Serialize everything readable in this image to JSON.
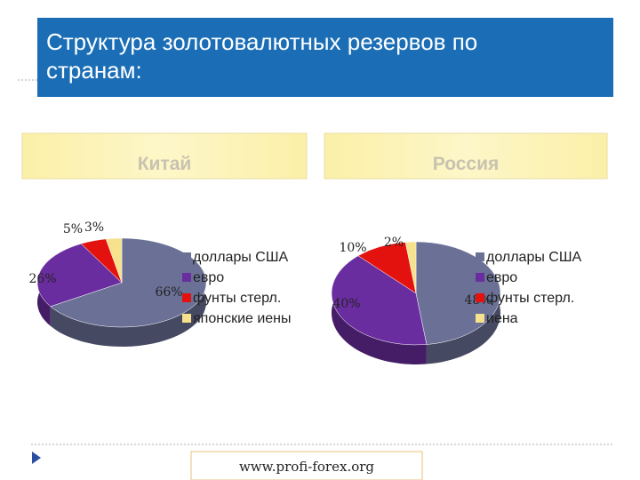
{
  "title": "Структура золотовалютных резервов по странам:",
  "footer": "www.profi-forex.org",
  "chart_data": [
    {
      "type": "pie",
      "title": "Китай",
      "categories": [
        "доллары США",
        "евро",
        "фунты стерл.",
        "японские иены"
      ],
      "values": [
        66,
        26,
        5,
        3
      ],
      "value_labels": [
        "66%",
        "26%",
        "5%",
        "3%"
      ],
      "colors": [
        "#6b7196",
        "#6a2d9f",
        "#e4120f",
        "#f6e18c"
      ]
    },
    {
      "type": "pie",
      "title": "Россия",
      "categories": [
        "доллары США",
        "евро",
        "фунты стерл.",
        "иена"
      ],
      "values": [
        48,
        40,
        10,
        2
      ],
      "value_labels": [
        "48%",
        "40%",
        "10%",
        "2%"
      ],
      "colors": [
        "#6b7196",
        "#6a2d9f",
        "#e4120f",
        "#f6e18c"
      ]
    }
  ]
}
